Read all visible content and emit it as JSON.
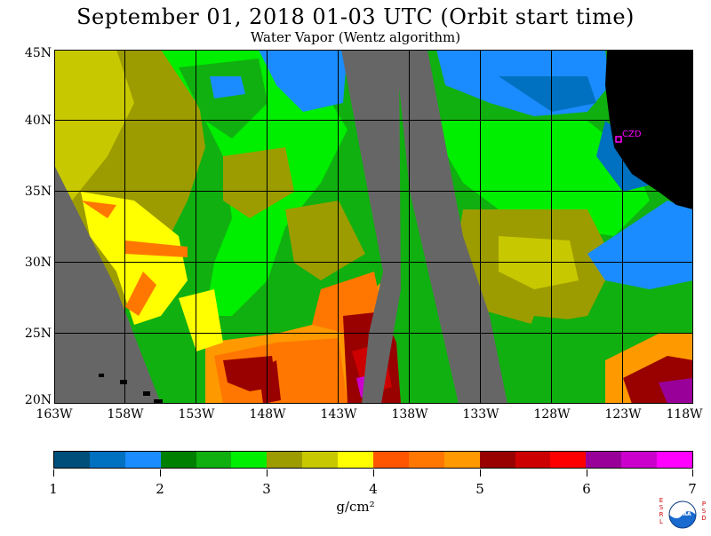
{
  "header": {
    "title": "September 01, 2018  01-03 UTC  (Orbit start time)",
    "subtitle": "Water Vapor (Wentz algorithm)"
  },
  "map": {
    "latitude_labels": [
      "45N",
      "40N",
      "35N",
      "30N",
      "25N",
      "20N"
    ],
    "longitude_labels": [
      "163W",
      "158W",
      "153W",
      "148W",
      "143W",
      "138W",
      "133W",
      "128W",
      "123W",
      "118W"
    ],
    "station_label": "CZD"
  },
  "colorbar": {
    "labels": [
      "1",
      "2",
      "3",
      "4",
      "5",
      "6",
      "7"
    ],
    "units": "g/cm²",
    "colors": [
      "#004f7a",
      "#0070c0",
      "#1a8cff",
      "#008000",
      "#10b010",
      "#00ee00",
      "#9c9c00",
      "#c8c800",
      "#ffff00",
      "#ff5500",
      "#ff7700",
      "#ff9900",
      "#990000",
      "#cc0000",
      "#ff0000",
      "#990099",
      "#cc00cc",
      "#ff00ff"
    ]
  },
  "logo": {
    "left_text": "ESRL",
    "right_text": "PSD",
    "center_text": "NOAA"
  }
}
